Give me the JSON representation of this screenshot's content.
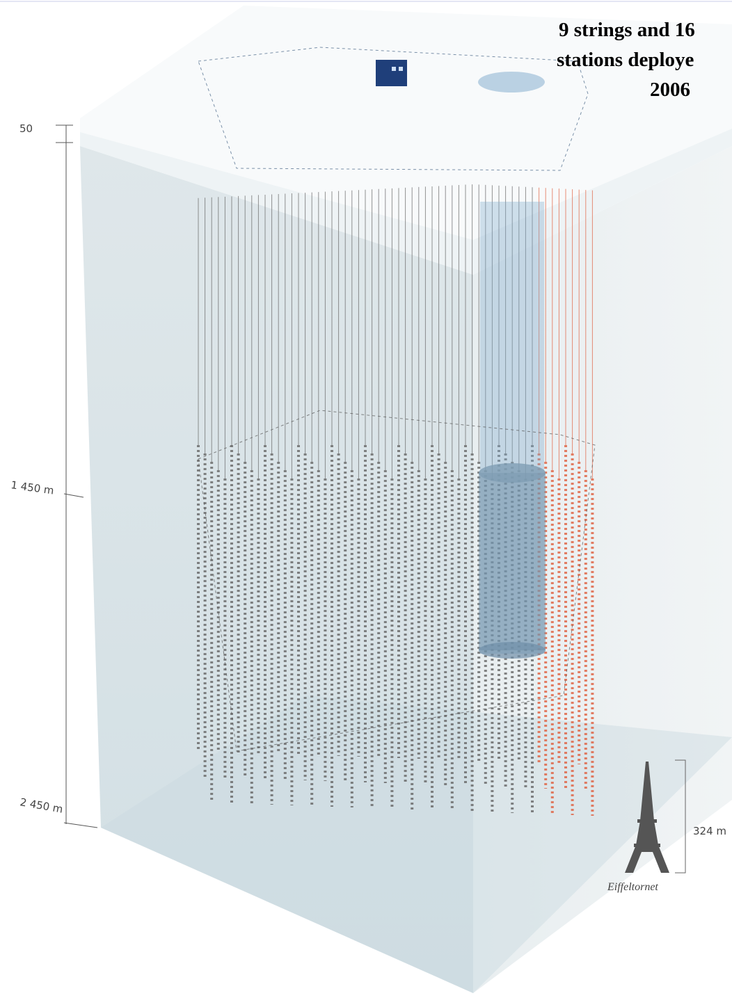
{
  "caption": {
    "lines": [
      "9 strings and 16",
      "stations deploye",
      "2006"
    ]
  },
  "depth_scale": {
    "top": "50",
    "middle": "1 450 m",
    "bottom": "2 450 m"
  },
  "comparison": {
    "height": "324 m",
    "name": "Eiffeltornet"
  }
}
